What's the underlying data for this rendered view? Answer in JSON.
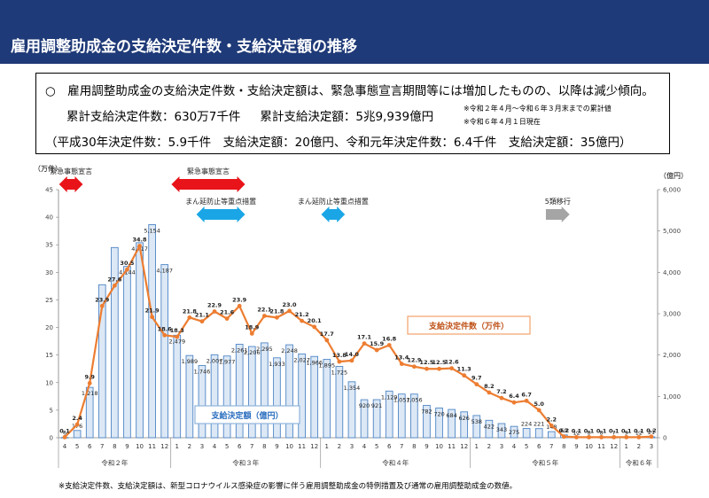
{
  "page": {
    "title": "雇用調整助成金の支給決定件数・支給決定額の推移",
    "summary": {
      "line1": "○　雇用調整助成金の支給決定件数・支給決定額は、緊急事態宣言期間等には増加したものの、以降は減少傾向。",
      "cum_count": "累計支給決定件数：630万7千件",
      "cum_amount": "累計支給決定額：5兆9,939億円",
      "note1": "※令和２年４月～令和６年３月末までの累計値",
      "note2": "※令和６年４月１日現在",
      "line3": "（平成30年決定件数：5.9千件　支給決定額：20億円、令和元年決定件数：6.4千件　支給決定額：35億円）"
    },
    "footnote": "※支給決定件数、支給決定額は、新型コロナウイルス感染症の影響に伴う雇用調整助成金の特例措置及び通常の雇用調整助成金の数値。"
  },
  "chart_data": {
    "type": "bar",
    "y_left_label": "（万件）",
    "y_right_label": "（億円）",
    "y_left_ticks": [
      "0",
      "5",
      "10",
      "15",
      "20",
      "25",
      "30",
      "35",
      "40",
      "45"
    ],
    "y_right_ticks": [
      "0",
      "1,000",
      "2,000",
      "3,000",
      "4,000",
      "5,000",
      "6,000"
    ],
    "ylim_left": [
      0,
      45
    ],
    "ylim_right": [
      0,
      6000
    ],
    "months": [
      "4",
      "5",
      "6",
      "7",
      "8",
      "9",
      "10",
      "11",
      "12",
      "1",
      "2",
      "3",
      "4",
      "5",
      "6",
      "7",
      "8",
      "9",
      "10",
      "11",
      "12",
      "1",
      "2",
      "3",
      "4",
      "5",
      "6",
      "7",
      "8",
      "9",
      "10",
      "11",
      "12",
      "1",
      "2",
      "3",
      "4",
      "5",
      "6",
      "7",
      "8",
      "9",
      "10",
      "11",
      "12",
      "1",
      "2",
      "3"
    ],
    "year_groups": [
      {
        "label": "令和２年",
        "start": 0,
        "end": 8
      },
      {
        "label": "令和３年",
        "start": 9,
        "end": 20
      },
      {
        "label": "令和４年",
        "start": 21,
        "end": 32
      },
      {
        "label": "令和５年",
        "start": 33,
        "end": 44
      },
      {
        "label": "令和６年",
        "start": 45,
        "end": 47
      }
    ],
    "series": [
      {
        "name": "支給決定額（億円）",
        "kind": "bar",
        "axis": "right",
        "values": [
          6,
          176,
          1218,
          3700,
          4600,
          4144,
          4717,
          5154,
          4187,
          2479,
          1989,
          1746,
          2007,
          1977,
          2261,
          2206,
          2295,
          1933,
          2248,
          2027,
          1966,
          1895,
          1725,
          1354,
          920,
          921,
          1129,
          1057,
          1056,
          782,
          720,
          684,
          626,
          538,
          422,
          343,
          275,
          224,
          221,
          148,
          69,
          12,
          8,
          8,
          7,
          9,
          12,
          21
        ],
        "labels": [
          "6",
          "176",
          "1,218",
          "",
          "",
          "4,144",
          "4,717",
          "5,154",
          "4,187",
          "2,479",
          "1,989",
          "1,746",
          "2,007",
          "1,977",
          "2,261",
          "2,206",
          "2,295",
          "1,933",
          "2,248",
          "2,027",
          "1,966",
          "1,895",
          "1,725",
          "1,354",
          "920",
          "921",
          "1,129",
          "1,057",
          "1,056",
          "782",
          "720",
          "684",
          "626",
          "538",
          "422",
          "343",
          "275",
          "224",
          "221",
          "148",
          "69",
          "12",
          "8",
          "8",
          "7",
          "9",
          "12",
          "21"
        ]
      },
      {
        "name": "支給決定件数（万件）",
        "kind": "line",
        "axis": "left",
        "values": [
          0.1,
          2.4,
          9.9,
          23.9,
          27.6,
          30.5,
          34.8,
          21.9,
          18.6,
          18.3,
          21.8,
          21.1,
          22.9,
          21.6,
          23.9,
          18.9,
          22.1,
          21.8,
          23.0,
          21.2,
          20.1,
          17.7,
          13.8,
          14.0,
          17.1,
          15.9,
          16.8,
          13.4,
          12.9,
          12.5,
          12.5,
          12.6,
          11.3,
          9.7,
          8.2,
          7.2,
          6.4,
          6.7,
          5.0,
          2.2,
          0.2,
          0.1,
          0.1,
          0.1,
          0.1,
          0.1,
          0.1,
          0.2
        ],
        "labels": [
          "0.1",
          "2.4",
          "9.9",
          "23.9",
          "27.6",
          "30.5",
          "34.8",
          "21.9",
          "18.6",
          "18.3",
          "21.8",
          "21.1",
          "22.9",
          "21.6",
          "23.9",
          "18.9",
          "22.1",
          "21.8",
          "23.0",
          "21.2",
          "20.1",
          "17.7",
          "13.8",
          "14.0",
          "17.1",
          "15.9",
          "16.8",
          "13.4",
          "12.9",
          "12.5",
          "12.5",
          "12.6",
          "11.3",
          "9.7",
          "8.2",
          "7.2",
          "6.4",
          "6.7",
          "5.0",
          "2.2",
          "0.2",
          "0.1",
          "0.1",
          "0.1",
          "0.1",
          "0.1",
          "0.1",
          "0.2"
        ]
      }
    ],
    "legend_bar": "支給決定額（億円）",
    "legend_line": "支給決定件数（万件）",
    "annotations": [
      {
        "text": "緊急事態宣言",
        "color": "#e8141a",
        "start": 0,
        "end": 1
      },
      {
        "text": "緊急事態宣言",
        "color": "#e8141a",
        "start": 9,
        "end": 14
      },
      {
        "text": "まん延防止等重点措置",
        "color": "#1aa6e6",
        "start": 11,
        "end": 14
      },
      {
        "text": "まん延防止等重点措置",
        "color": "#1aa6e6",
        "start": 21,
        "end": 22
      },
      {
        "text": "5類移行",
        "color": "#a5a5a5",
        "start": 39,
        "end": 40
      }
    ],
    "colors": {
      "bar": "#4f86c6",
      "bar_light": "#dce8f5",
      "line": "#ed7d31",
      "axis": "#808080"
    }
  }
}
